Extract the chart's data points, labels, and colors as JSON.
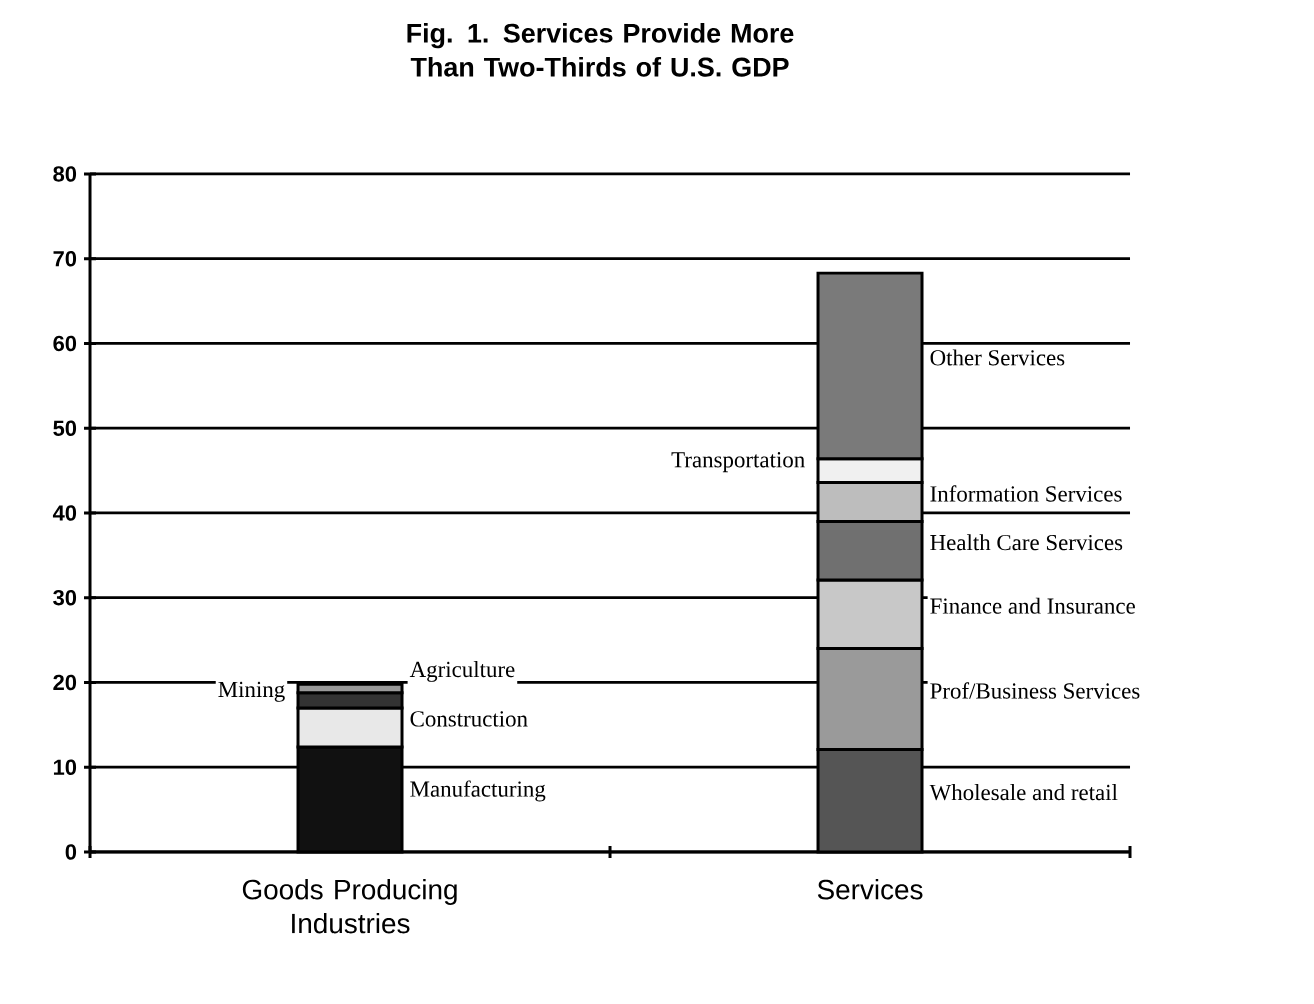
{
  "chart_data": {
    "type": "bar",
    "stacked": true,
    "title": "Fig. 1. Services Provide More Than Two-Thirds of U.S. GDP",
    "categories": [
      "Goods Producing Industries",
      "Services"
    ],
    "ylim": [
      0,
      80
    ],
    "yticks": [
      0,
      10,
      20,
      30,
      40,
      50,
      60,
      70,
      80
    ],
    "grid": "y",
    "series": [
      {
        "name": "Manufacturing",
        "color": "#111111",
        "values": [
          12.4,
          null
        ]
      },
      {
        "name": "Construction",
        "color": "#e8e8e8",
        "values": [
          4.6,
          null
        ]
      },
      {
        "name": "Mining",
        "color": "#333333",
        "values": [
          1.8,
          null
        ]
      },
      {
        "name": "Agriculture",
        "color": "#999999",
        "values": [
          1.0,
          null
        ]
      },
      {
        "name": "Wholesale and retail",
        "color": "#555555",
        "values": [
          null,
          12.1
        ]
      },
      {
        "name": "Prof/Business Services",
        "color": "#9a9a9a",
        "values": [
          null,
          11.9
        ]
      },
      {
        "name": "Finance and Insurance",
        "color": "#c8c8c8",
        "values": [
          null,
          8.1
        ]
      },
      {
        "name": "Health Care Services",
        "color": "#707070",
        "values": [
          null,
          6.9
        ]
      },
      {
        "name": "Information Services",
        "color": "#bdbdbd",
        "values": [
          null,
          4.6
        ]
      },
      {
        "name": "Transportation",
        "color": "#f0f0f0",
        "values": [
          null,
          2.8
        ]
      },
      {
        "name": "Other Services",
        "color": "#7a7a7a",
        "values": [
          null,
          21.9
        ]
      }
    ]
  }
}
